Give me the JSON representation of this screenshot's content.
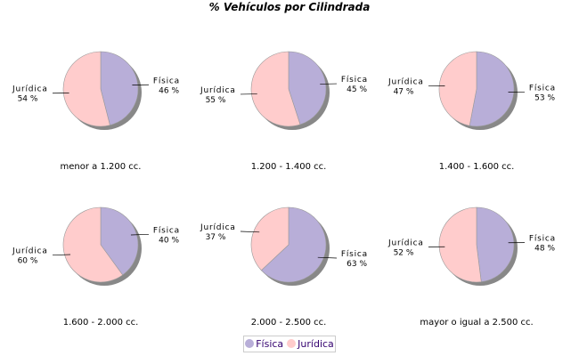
{
  "chart_data": {
    "type": "pie",
    "title": "% Vehículos por Cilindrada",
    "series_names": [
      "Física",
      "Jurídica"
    ],
    "colors": {
      "Física": "#b8aed8",
      "Jurídica": "#ffcccc"
    },
    "legend": "bottom",
    "charts": [
      {
        "category": "menor a 1.200 cc.",
        "values": [
          46,
          54
        ]
      },
      {
        "category": "1.200 - 1.400 cc.",
        "values": [
          45,
          55
        ]
      },
      {
        "category": "1.400 - 1.600 cc.",
        "values": [
          53,
          47
        ]
      },
      {
        "category": "1.600 - 2.000 cc.",
        "values": [
          40,
          60
        ]
      },
      {
        "category": "2.000 - 2.500 cc.",
        "values": [
          63,
          37
        ]
      },
      {
        "category": "mayor o igual a 2.500 cc.",
        "values": [
          48,
          52
        ]
      }
    ]
  }
}
